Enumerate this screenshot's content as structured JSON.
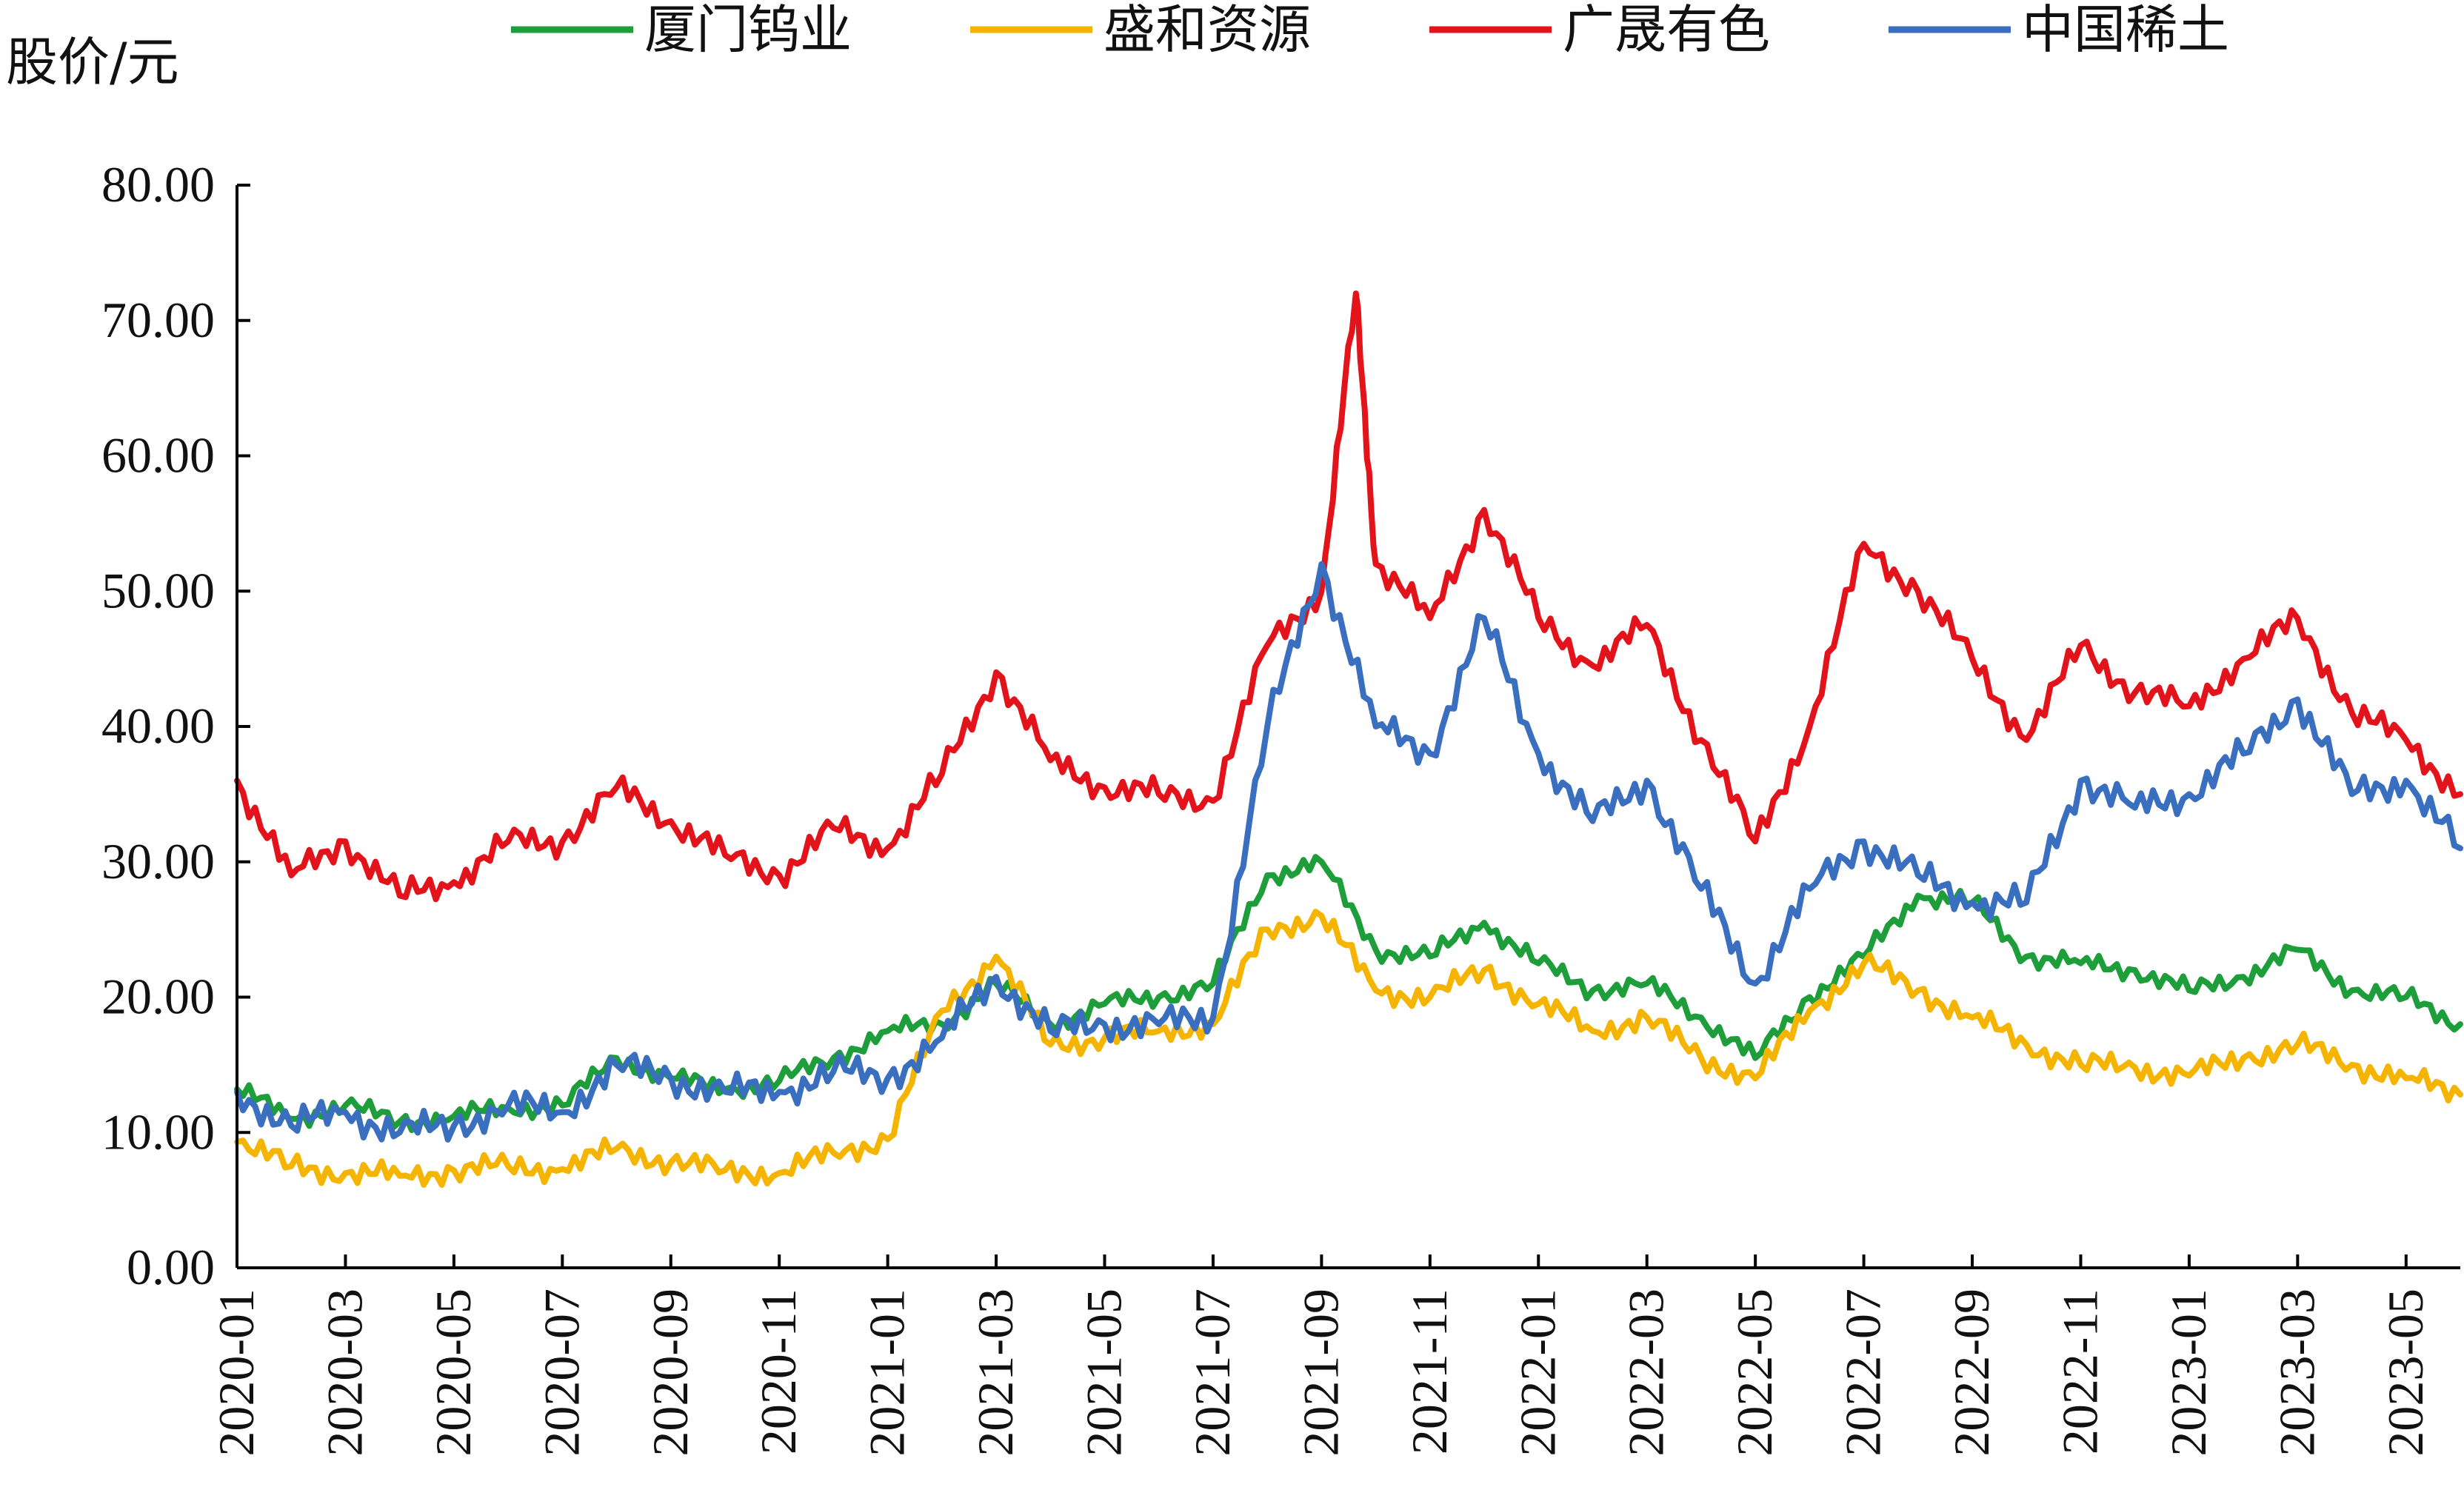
{
  "chart_data": {
    "type": "line",
    "ylabel": "股价/元",
    "ylim": [
      0,
      80
    ],
    "yticks": [
      "0.00",
      "10.00",
      "20.00",
      "30.00",
      "40.00",
      "50.00",
      "60.00",
      "70.00",
      "80.00"
    ],
    "xlim": [
      "2020-01",
      "2023-06"
    ],
    "xticks": [
      "2020-01",
      "2020-03",
      "2020-05",
      "2020-07",
      "2020-09",
      "2020-11",
      "2021-01",
      "2021-03",
      "2021-05",
      "2021-07",
      "2021-09",
      "2021-11",
      "2022-01",
      "2022-03",
      "2022-05",
      "2022-07",
      "2022-09",
      "2022-11",
      "2023-01",
      "2023-03",
      "2023-05"
    ],
    "legend_position": "top",
    "series": [
      {
        "name": "厦门钨业",
        "color": "#1e9e3a",
        "points": [
          [
            "2020-01",
            13.2
          ],
          [
            "2020-02",
            11.0
          ],
          [
            "2020-03",
            12.0
          ],
          [
            "2020-04",
            10.8
          ],
          [
            "2020-05",
            11.2
          ],
          [
            "2020-06",
            11.8
          ],
          [
            "2020-07",
            12.0
          ],
          [
            "2020-08",
            15.5
          ],
          [
            "2020-09",
            14.0
          ],
          [
            "2020-10",
            13.2
          ],
          [
            "2020-11",
            13.8
          ],
          [
            "2020-12",
            15.5
          ],
          [
            "2021-01",
            17.5
          ],
          [
            "2021-02",
            18.0
          ],
          [
            "2021-03",
            21.0
          ],
          [
            "2021-04",
            18.0
          ],
          [
            "2021-05",
            19.5
          ],
          [
            "2021-06",
            20.0
          ],
          [
            "2021-07",
            21.0
          ],
          [
            "2021-08",
            29.0
          ],
          [
            "2021-09",
            30.0
          ],
          [
            "2021-10",
            23.5
          ],
          [
            "2021-11",
            23.0
          ],
          [
            "2021-12",
            25.5
          ],
          [
            "2022-01",
            22.5
          ],
          [
            "2022-02",
            20.5
          ],
          [
            "2022-03",
            21.0
          ],
          [
            "2022-04",
            18.5
          ],
          [
            "2022-05",
            15.5
          ],
          [
            "2022-06",
            20.0
          ],
          [
            "2022-07",
            23.0
          ],
          [
            "2022-08",
            27.5
          ],
          [
            "2022-09",
            27.0
          ],
          [
            "2022-10",
            23.0
          ],
          [
            "2022-11",
            22.5
          ],
          [
            "2022-12",
            22.0
          ],
          [
            "2023-01",
            20.5
          ],
          [
            "2023-02",
            21.5
          ],
          [
            "2023-03",
            23.5
          ],
          [
            "2023-04",
            20.5
          ],
          [
            "2023-05",
            20.0
          ],
          [
            "2023-06",
            18.0
          ]
        ]
      },
      {
        "name": "盛和资源",
        "color": "#f4b400",
        "points": [
          [
            "2020-01",
            9.3
          ],
          [
            "2020-02",
            7.5
          ],
          [
            "2020-03",
            7.0
          ],
          [
            "2020-04",
            6.8
          ],
          [
            "2020-05",
            7.2
          ],
          [
            "2020-06",
            7.5
          ],
          [
            "2020-07",
            7.3
          ],
          [
            "2020-08",
            8.8
          ],
          [
            "2020-09",
            7.8
          ],
          [
            "2020-10",
            7.2
          ],
          [
            "2020-11",
            7.0
          ],
          [
            "2020-12",
            8.5
          ],
          [
            "2021-01",
            9.5
          ],
          [
            "2021-02",
            19.0
          ],
          [
            "2021-03",
            23.0
          ],
          [
            "2021-04",
            16.5
          ],
          [
            "2021-05",
            17.0
          ],
          [
            "2021-06",
            17.5
          ],
          [
            "2021-07",
            18.0
          ],
          [
            "2021-08",
            25.0
          ],
          [
            "2021-09",
            26.0
          ],
          [
            "2021-10",
            20.5
          ],
          [
            "2021-11",
            20.0
          ],
          [
            "2021-12",
            22.0
          ],
          [
            "2022-01",
            19.5
          ],
          [
            "2022-02",
            17.5
          ],
          [
            "2022-03",
            18.5
          ],
          [
            "2022-04",
            15.5
          ],
          [
            "2022-05",
            14.0
          ],
          [
            "2022-06",
            19.0
          ],
          [
            "2022-07",
            22.5
          ],
          [
            "2022-08",
            20.5
          ],
          [
            "2022-09",
            18.5
          ],
          [
            "2022-10",
            16.5
          ],
          [
            "2022-11",
            15.0
          ],
          [
            "2022-12",
            14.8
          ],
          [
            "2023-01",
            14.2
          ],
          [
            "2023-02",
            15.5
          ],
          [
            "2023-03",
            16.5
          ],
          [
            "2023-04",
            15.0
          ],
          [
            "2023-05",
            14.0
          ],
          [
            "2023-06",
            12.8
          ]
        ]
      },
      {
        "name": "广晟有色",
        "color": "#e3131c",
        "points": [
          [
            "2020-01",
            36.0
          ],
          [
            "2020-02",
            29.0
          ],
          [
            "2020-03",
            31.5
          ],
          [
            "2020-04",
            27.5
          ],
          [
            "2020-05",
            28.5
          ],
          [
            "2020-06",
            31.5
          ],
          [
            "2020-07",
            31.5
          ],
          [
            "2020-08",
            35.5
          ],
          [
            "2020-09",
            33.0
          ],
          [
            "2020-10",
            30.5
          ],
          [
            "2020-11",
            29.0
          ],
          [
            "2020-12",
            32.5
          ],
          [
            "2021-01",
            31.0
          ],
          [
            "2021-02",
            36.5
          ],
          [
            "2021-03",
            44.0
          ],
          [
            "2021-04",
            37.5
          ],
          [
            "2021-05",
            35.5
          ],
          [
            "2021-06",
            35.0
          ],
          [
            "2021-07",
            34.5
          ],
          [
            "2021-08",
            46.0
          ],
          [
            "2021-09",
            50.0
          ],
          [
            "2021-09-20",
            72.0
          ],
          [
            "2021-10",
            52.0
          ],
          [
            "2021-11",
            48.0
          ],
          [
            "2021-12",
            56.0
          ],
          [
            "2022-01",
            48.0
          ],
          [
            "2022-02",
            44.5
          ],
          [
            "2022-03",
            47.5
          ],
          [
            "2022-04",
            39.0
          ],
          [
            "2022-05",
            31.5
          ],
          [
            "2022-06",
            40.0
          ],
          [
            "2022-07",
            53.5
          ],
          [
            "2022-08",
            50.0
          ],
          [
            "2022-09",
            45.0
          ],
          [
            "2022-10",
            39.0
          ],
          [
            "2022-11",
            46.0
          ],
          [
            "2022-12",
            42.5
          ],
          [
            "2023-01",
            41.5
          ],
          [
            "2023-02",
            45.0
          ],
          [
            "2023-03",
            48.0
          ],
          [
            "2023-04",
            41.0
          ],
          [
            "2023-05",
            39.0
          ],
          [
            "2023-06",
            35.0
          ]
        ]
      },
      {
        "name": "中国稀土",
        "color": "#3a6fbf",
        "points": [
          [
            "2020-01",
            13.0
          ],
          [
            "2020-02",
            10.5
          ],
          [
            "2020-03",
            11.5
          ],
          [
            "2020-04",
            10.0
          ],
          [
            "2020-05",
            10.5
          ],
          [
            "2020-06",
            12.0
          ],
          [
            "2020-07",
            11.5
          ],
          [
            "2020-08",
            15.0
          ],
          [
            "2020-09",
            14.0
          ],
          [
            "2020-10",
            13.0
          ],
          [
            "2020-11",
            13.0
          ],
          [
            "2020-12",
            14.5
          ],
          [
            "2021-01",
            14.0
          ],
          [
            "2021-02",
            17.0
          ],
          [
            "2021-03",
            21.5
          ],
          [
            "2021-04",
            17.5
          ],
          [
            "2021-05",
            18.0
          ],
          [
            "2021-06",
            18.0
          ],
          [
            "2021-07",
            18.5
          ],
          [
            "2021-08",
            40.0
          ],
          [
            "2021-09",
            52.0
          ],
          [
            "2021-10",
            40.0
          ],
          [
            "2021-11",
            38.0
          ],
          [
            "2021-12",
            48.0
          ],
          [
            "2022-01",
            38.0
          ],
          [
            "2022-02",
            33.0
          ],
          [
            "2022-03",
            36.0
          ],
          [
            "2022-04",
            28.0
          ],
          [
            "2022-05",
            21.0
          ],
          [
            "2022-06",
            28.0
          ],
          [
            "2022-07",
            31.5
          ],
          [
            "2022-08",
            29.0
          ],
          [
            "2022-09",
            27.0
          ],
          [
            "2022-10",
            27.0
          ],
          [
            "2022-11",
            36.0
          ],
          [
            "2022-12",
            34.0
          ],
          [
            "2023-01",
            35.0
          ],
          [
            "2023-02",
            38.0
          ],
          [
            "2023-03",
            42.0
          ],
          [
            "2023-04",
            35.0
          ],
          [
            "2023-05",
            36.0
          ],
          [
            "2023-06",
            31.0
          ]
        ]
      }
    ]
  }
}
